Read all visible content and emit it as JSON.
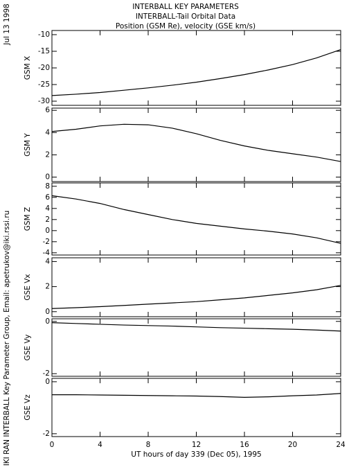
{
  "page": {
    "title": "INTERBALL KEY PARAMETERS",
    "subtitle": "INTERBALL-Tail Orbital Data",
    "subtitle2": "Position (GSM Re), velocity (GSE km/s)",
    "date": "Jul 13 1998",
    "credit": "IKI RAN INTERBALL Key Parameter Group, Email: apetrukov@iki.rssi.ru"
  },
  "chart_data": [
    {
      "type": "line",
      "ylabel": "GSM X",
      "color": "#000000",
      "x": [
        0,
        2,
        4,
        6,
        8,
        10,
        12,
        14,
        16,
        18,
        20,
        22,
        24
      ],
      "xlim": [
        0,
        24
      ],
      "values": [
        -28.3,
        -27.9,
        -27.4,
        -26.7,
        -26,
        -25.2,
        -24.3,
        -23.2,
        -22,
        -20.6,
        -19,
        -17,
        -14.5
      ],
      "ylim": [
        -31.25,
        -8.75
      ],
      "yticks": [
        -30,
        -25,
        -20,
        -15,
        -10
      ]
    },
    {
      "type": "line",
      "ylabel": "GSM Y",
      "color": "#000000",
      "x": [
        0,
        2,
        4,
        6,
        8,
        10,
        12,
        14,
        16,
        18,
        20,
        22,
        24
      ],
      "xlim": [
        0,
        24
      ],
      "values": [
        4.1,
        4.3,
        4.6,
        4.75,
        4.7,
        4.4,
        3.9,
        3.3,
        2.8,
        2.4,
        2.1,
        1.8,
        1.4
      ],
      "ylim": [
        -0.4,
        6.2
      ],
      "yticks": [
        0,
        2,
        4,
        6
      ]
    },
    {
      "type": "line",
      "ylabel": "GSM Z",
      "color": "#000000",
      "x": [
        0,
        2,
        4,
        6,
        8,
        10,
        12,
        14,
        16,
        18,
        20,
        22,
        24
      ],
      "xlim": [
        0,
        24
      ],
      "values": [
        6.3,
        5.7,
        4.9,
        3.8,
        2.9,
        2,
        1.3,
        0.8,
        0.3,
        -0.1,
        -0.6,
        -1.3,
        -2.3
      ],
      "ylim": [
        -4.4,
        8.6
      ],
      "yticks": [
        -4,
        -2,
        0,
        2,
        4,
        6,
        8
      ]
    },
    {
      "type": "line",
      "ylabel": "GSE Vx",
      "color": "#000000",
      "x": [
        0,
        2,
        4,
        6,
        8,
        10,
        12,
        14,
        16,
        18,
        20,
        22,
        24
      ],
      "xlim": [
        0,
        24
      ],
      "values": [
        0.25,
        0.32,
        0.4,
        0.5,
        0.6,
        0.7,
        0.8,
        0.95,
        1.1,
        1.3,
        1.5,
        1.75,
        2.1
      ],
      "ylim": [
        -0.4,
        4.3
      ],
      "yticks": [
        0,
        2,
        4
      ]
    },
    {
      "type": "line",
      "ylabel": "GSE Vy",
      "color": "#000000",
      "x": [
        0,
        2,
        4,
        6,
        8,
        10,
        12,
        14,
        16,
        18,
        20,
        22,
        24
      ],
      "xlim": [
        0,
        24
      ],
      "values": [
        -0.05,
        -0.08,
        -0.11,
        -0.14,
        -0.16,
        -0.18,
        -0.21,
        -0.24,
        -0.26,
        -0.28,
        -0.3,
        -0.33,
        -0.37
      ],
      "ylim": [
        -2.1,
        0.1
      ],
      "yticks": [
        -2,
        0
      ]
    },
    {
      "type": "line",
      "ylabel": "GSE Vz",
      "color": "#000000",
      "x": [
        0,
        2,
        4,
        6,
        8,
        10,
        12,
        14,
        16,
        18,
        20,
        22,
        24
      ],
      "xlim": [
        0,
        24
      ],
      "values": [
        -0.5,
        -0.5,
        -0.51,
        -0.52,
        -0.53,
        -0.54,
        -0.55,
        -0.57,
        -0.6,
        -0.58,
        -0.54,
        -0.51,
        -0.45
      ],
      "ylim": [
        -2.11,
        0.13
      ],
      "yticks": [
        -2,
        0
      ],
      "xticks": [
        0,
        4,
        8,
        12,
        16,
        20,
        24
      ],
      "xlabel": "UT hours of day 339 (Dec 05), 1995"
    }
  ]
}
